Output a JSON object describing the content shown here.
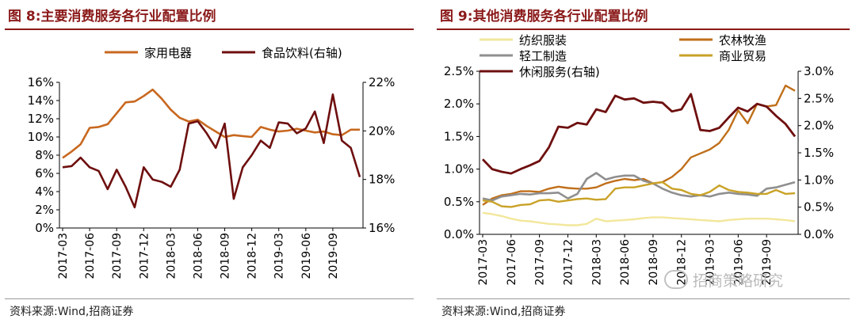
{
  "figures": [
    {
      "title": "图 8:主要消费服务各行业配置比例",
      "source": "资料来源:Wind,招商证券",
      "chart_data": {
        "type": "line",
        "x": [
          "2017-03",
          "2017-04",
          "2017-05",
          "2017-06",
          "2017-07",
          "2017-08",
          "2017-09",
          "2017-10",
          "2017-11",
          "2017-12",
          "2018-01",
          "2018-02",
          "2018-03",
          "2018-04",
          "2018-05",
          "2018-06",
          "2018-07",
          "2018-08",
          "2018-09",
          "2018-10",
          "2018-11",
          "2018-12",
          "2019-01",
          "2019-02",
          "2019-03",
          "2019-04",
          "2019-05",
          "2019-06",
          "2019-07",
          "2019-08",
          "2019-09",
          "2019-10",
          "2019-11",
          "2019-12"
        ],
        "xticks": [
          "2017-03",
          "2017-06",
          "2017-09",
          "2017-12",
          "2018-03",
          "2018-06",
          "2018-09",
          "2018-12",
          "2019-03",
          "2019-06",
          "2019-09"
        ],
        "yticks_left": [
          "0%",
          "2%",
          "4%",
          "6%",
          "8%",
          "10%",
          "12%",
          "14%",
          "16%"
        ],
        "yticks_right": [
          "16%",
          "18%",
          "20%",
          "22%"
        ],
        "ylim_left": [
          0,
          16
        ],
        "ylim_right": [
          16,
          22
        ],
        "grid": false,
        "legend_position": "top",
        "series": [
          {
            "name": "家用电器",
            "axis": "left",
            "color": "#c8681f",
            "values": [
              7.7,
              8.4,
              9.2,
              11.0,
              11.1,
              11.4,
              12.6,
              13.8,
              13.9,
              14.5,
              15.2,
              14.2,
              13.0,
              12.1,
              11.7,
              11.9,
              11.2,
              10.6,
              10.0,
              10.2,
              10.1,
              10.0,
              11.1,
              10.8,
              10.6,
              10.7,
              10.9,
              10.7,
              10.5,
              10.6,
              10.3,
              10.2,
              10.8,
              10.8
            ]
          },
          {
            "name": "食品饮料(右轴)",
            "axis": "right",
            "color": "#6e0f0f",
            "values": [
              18.5,
              18.55,
              18.9,
              18.5,
              18.35,
              17.6,
              18.4,
              17.7,
              16.85,
              18.5,
              18.0,
              17.9,
              17.7,
              18.4,
              20.3,
              20.4,
              19.9,
              19.3,
              20.3,
              17.2,
              18.5,
              19.0,
              19.6,
              19.3,
              20.35,
              20.3,
              19.9,
              20.1,
              20.8,
              19.5,
              21.5,
              19.6,
              19.3,
              18.1
            ]
          }
        ]
      }
    },
    {
      "title": "图 9:其他消费服务各行业配置比例",
      "source": "资料来源:Wind,招商证券",
      "chart_data": {
        "type": "line",
        "x": [
          "2017-03",
          "2017-04",
          "2017-05",
          "2017-06",
          "2017-07",
          "2017-08",
          "2017-09",
          "2017-10",
          "2017-11",
          "2017-12",
          "2018-01",
          "2018-02",
          "2018-03",
          "2018-04",
          "2018-05",
          "2018-06",
          "2018-07",
          "2018-08",
          "2018-09",
          "2018-10",
          "2018-11",
          "2018-12",
          "2019-01",
          "2019-02",
          "2019-03",
          "2019-04",
          "2019-05",
          "2019-06",
          "2019-07",
          "2019-08",
          "2019-09",
          "2019-10",
          "2019-11",
          "2019-12"
        ],
        "xticks": [
          "2017-03",
          "2017-06",
          "2017-09",
          "2017-12",
          "2018-03",
          "2018-06",
          "2018-09",
          "2018-12",
          "2019-03",
          "2019-06",
          "2019-09"
        ],
        "yticks_left": [
          "0.0%",
          "0.5%",
          "1.0%",
          "1.5%",
          "2.0%",
          "2.5%"
        ],
        "yticks_right": [
          "0.0%",
          "0.5%",
          "1.0%",
          "1.5%",
          "2.0%",
          "2.5%",
          "3.0%"
        ],
        "ylim_left": [
          0,
          2.5
        ],
        "ylim_right": [
          0,
          3.0
        ],
        "grid": false,
        "legend_position": "top",
        "series": [
          {
            "name": "纺织服装",
            "axis": "left",
            "color": "#f2e79c",
            "values": [
              0.33,
              0.31,
              0.28,
              0.24,
              0.21,
              0.2,
              0.18,
              0.16,
              0.15,
              0.14,
              0.14,
              0.16,
              0.24,
              0.2,
              0.21,
              0.22,
              0.23,
              0.25,
              0.26,
              0.26,
              0.25,
              0.24,
              0.23,
              0.22,
              0.21,
              0.2,
              0.22,
              0.23,
              0.24,
              0.24,
              0.24,
              0.23,
              0.22,
              0.2
            ]
          },
          {
            "name": "农林牧渔",
            "axis": "left",
            "color": "#c06f1a",
            "values": [
              0.45,
              0.55,
              0.6,
              0.62,
              0.66,
              0.66,
              0.65,
              0.7,
              0.73,
              0.71,
              0.7,
              0.7,
              0.72,
              0.78,
              0.82,
              0.85,
              0.83,
              0.85,
              0.78,
              0.8,
              0.88,
              1.0,
              1.18,
              1.24,
              1.3,
              1.4,
              1.6,
              1.9,
              1.7,
              2.0,
              1.96,
              1.98,
              2.28,
              2.2
            ]
          },
          {
            "name": "轻工制造",
            "axis": "left",
            "color": "#8f8f8f",
            "values": [
              0.55,
              0.52,
              0.58,
              0.6,
              0.62,
              0.61,
              0.63,
              0.63,
              0.64,
              0.55,
              0.62,
              0.85,
              0.94,
              0.84,
              0.88,
              0.9,
              0.9,
              0.82,
              0.78,
              0.7,
              0.64,
              0.6,
              0.58,
              0.6,
              0.58,
              0.62,
              0.64,
              0.62,
              0.61,
              0.59,
              0.7,
              0.72,
              0.76,
              0.8
            ]
          },
          {
            "name": "商业贸易",
            "axis": "left",
            "color": "#c9a227",
            "values": [
              0.52,
              0.5,
              0.43,
              0.42,
              0.45,
              0.46,
              0.52,
              0.53,
              0.5,
              0.52,
              0.54,
              0.55,
              0.53,
              0.54,
              0.7,
              0.72,
              0.72,
              0.75,
              0.78,
              0.8,
              0.7,
              0.68,
              0.62,
              0.6,
              0.65,
              0.75,
              0.68,
              0.65,
              0.64,
              0.62,
              0.62,
              0.68,
              0.62,
              0.63
            ]
          },
          {
            "name": "休闲服务(右轴)",
            "axis": "right",
            "color": "#6e0f0f",
            "values": [
              1.38,
              1.2,
              1.15,
              1.12,
              1.2,
              1.27,
              1.35,
              1.6,
              1.98,
              1.96,
              2.05,
              2.02,
              2.3,
              2.25,
              2.55,
              2.48,
              2.5,
              2.42,
              2.44,
              2.42,
              2.26,
              2.3,
              2.58,
              1.92,
              1.9,
              1.96,
              2.15,
              2.33,
              2.26,
              2.4,
              2.35,
              2.18,
              2.03,
              1.8
            ]
          }
        ]
      }
    }
  ],
  "watermark": "招商策略研究"
}
